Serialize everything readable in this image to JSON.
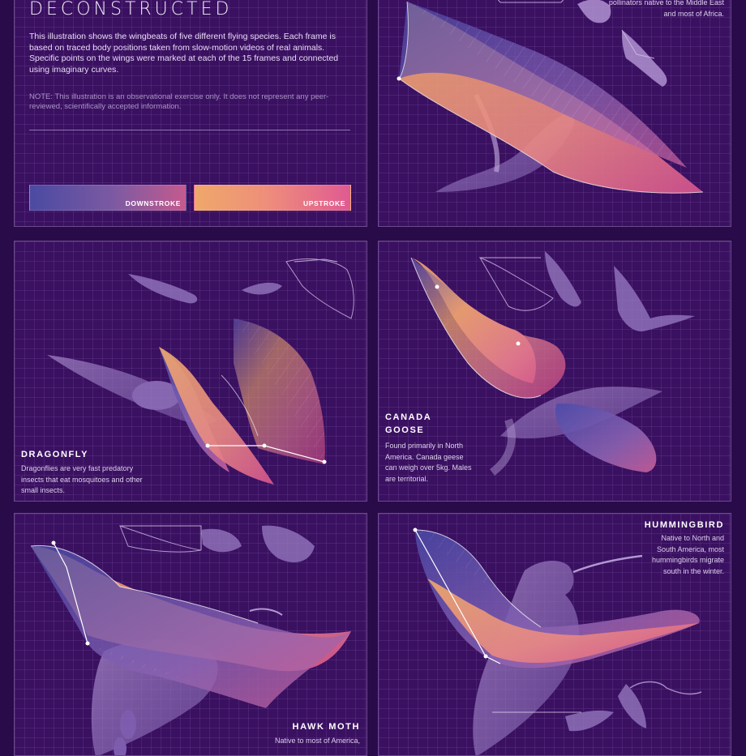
{
  "intro": {
    "title": "DECONSTRUCTED",
    "body": "This illustration shows the wingbeats of five different flying species. Each frame is based on traced body positions taken from slow-motion videos of real animals. Specific points on the wings were marked at each of the 15 frames and connected using imaginary curves.",
    "note": "NOTE: This illustration is an observational exercise only. It does not represent any peer-reviewed, scientifically accepted information.",
    "legend": {
      "downstroke": "DOWNSTROKE",
      "upstroke": "UPSTROKE"
    }
  },
  "bat": {
    "desc_fragment": "pollinators native to the Middle East and most of Africa."
  },
  "dragonfly": {
    "name": "DRAGONFLY",
    "desc": "Dragonflies are very fast predatory insects that eat mosquitoes and other small insects."
  },
  "goose": {
    "name_line1": "CANADA",
    "name_line2": "GOOSE",
    "desc": "Found primarily in North America. Canada geese can weigh over 5kg. Males are territorial."
  },
  "hawkmoth": {
    "name": "HAWK MOTH",
    "desc_fragment": "Native to most of America,"
  },
  "hummingbird": {
    "name": "HUMMINGBIRD",
    "desc": "Native to North and South America, most hummingbirds migrate south in the winter."
  },
  "colors": {
    "background": "#2a0b4a",
    "panel": "#3a1060",
    "downstroke_start": "#4a4aa2",
    "downstroke_end": "#c45a8e",
    "upstroke_start": "#efa86a",
    "upstroke_end": "#e05a92"
  }
}
